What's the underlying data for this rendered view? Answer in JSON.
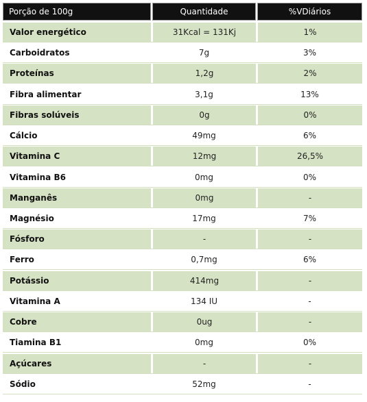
{
  "header": {
    "col1": "Porção de 100g",
    "col2": "Quantidade",
    "col3": "%VDiários"
  },
  "colors": {
    "header_bg": "#111111",
    "alt_row_bg": "#d6e2c4",
    "row_bg": "#ffffff"
  },
  "rows": [
    {
      "name": "Valor energético",
      "qty": "31Kcal = 131Kj",
      "vd": "1%"
    },
    {
      "name": "Carboidratos",
      "qty": "7g",
      "vd": "3%"
    },
    {
      "name": "Proteínas",
      "qty": "1,2g",
      "vd": "2%"
    },
    {
      "name": "Fibra alimentar",
      "qty": "3,1g",
      "vd": "13%"
    },
    {
      "name": "Fibras solúveis",
      "qty": "0g",
      "vd": "0%"
    },
    {
      "name": "Cálcio",
      "qty": "49mg",
      "vd": "6%"
    },
    {
      "name": "Vitamina C",
      "qty": "12mg",
      "vd": "26,5%"
    },
    {
      "name": "Vitamina B6",
      "qty": "0mg",
      "vd": "0%"
    },
    {
      "name": "Manganês",
      "qty": "0mg",
      "vd": "-"
    },
    {
      "name": "Magnésio",
      "qty": "17mg",
      "vd": "7%"
    },
    {
      "name": "Fósforo",
      "qty": "-",
      "vd": "-"
    },
    {
      "name": "Ferro",
      "qty": "0,7mg",
      "vd": "6%"
    },
    {
      "name": "Potássio",
      "qty": "414mg",
      "vd": "-"
    },
    {
      "name": "Vitamina A",
      "qty": "134 IU",
      "vd": "-"
    },
    {
      "name": "Cobre",
      "qty": "0ug",
      "vd": "-"
    },
    {
      "name": "Tiamina B1",
      "qty": "0mg",
      "vd": "0%"
    },
    {
      "name": "Açúcares",
      "qty": "-",
      "vd": "-"
    },
    {
      "name": "Sódio",
      "qty": "52mg",
      "vd": "-"
    }
  ]
}
